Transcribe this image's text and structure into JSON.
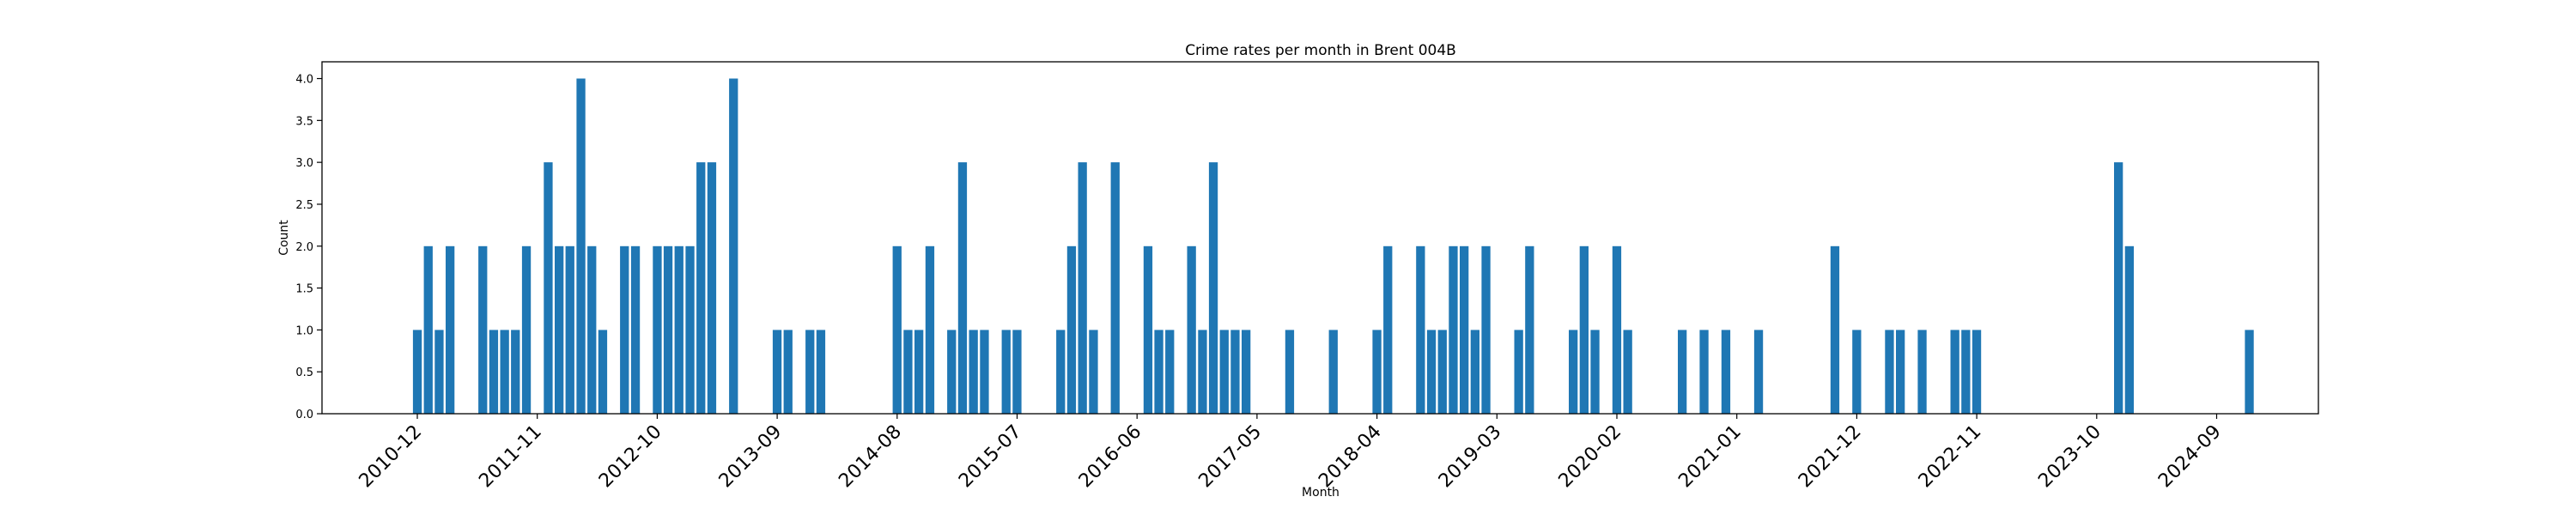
{
  "chart_data": {
    "type": "bar",
    "title": "Crime rates per month in Brent 004B",
    "xlabel": "Month",
    "ylabel": "Count",
    "ylim": [
      0,
      4.2
    ],
    "yticks": [
      "0.0",
      "0.5",
      "1.0",
      "1.5",
      "2.0",
      "2.5",
      "3.0",
      "3.5",
      "4.0"
    ],
    "xticks": [
      "2010-12",
      "2011-11",
      "2012-10",
      "2013-09",
      "2014-08",
      "2015-07",
      "2016-06",
      "2017-05",
      "2018-04",
      "2019-03",
      "2020-02",
      "2021-01",
      "2021-12",
      "2022-11",
      "2023-10",
      "2024-09"
    ],
    "grid": false,
    "legend": "none",
    "bar_color": "#1f77b4",
    "months": [
      "2010-12",
      "2011-01",
      "2011-02",
      "2011-03",
      "2011-06",
      "2011-07",
      "2011-08",
      "2011-09",
      "2011-10",
      "2011-12",
      "2012-01",
      "2012-02",
      "2012-03",
      "2012-04",
      "2012-05",
      "2012-07",
      "2012-08",
      "2012-10",
      "2012-11",
      "2012-12",
      "2013-01",
      "2013-02",
      "2013-03",
      "2013-05",
      "2013-09",
      "2013-10",
      "2013-12",
      "2014-01",
      "2014-08",
      "2014-09",
      "2014-10",
      "2014-11",
      "2015-01",
      "2015-02",
      "2015-03",
      "2015-04",
      "2015-06",
      "2015-07",
      "2015-11",
      "2015-12",
      "2016-01",
      "2016-02",
      "2016-04",
      "2016-07",
      "2016-08",
      "2016-09",
      "2016-11",
      "2016-12",
      "2017-01",
      "2017-02",
      "2017-03",
      "2017-04",
      "2017-08",
      "2017-12",
      "2018-04",
      "2018-05",
      "2018-08",
      "2018-09",
      "2018-10",
      "2018-11",
      "2018-12",
      "2019-01",
      "2019-02",
      "2019-05",
      "2019-06",
      "2019-10",
      "2019-11",
      "2019-12",
      "2020-02",
      "2020-03",
      "2020-08",
      "2020-10",
      "2020-12",
      "2021-03",
      "2021-10",
      "2021-12",
      "2022-03",
      "2022-04",
      "2022-06",
      "2022-09",
      "2022-10",
      "2022-11",
      "2023-12",
      "2024-01",
      "2024-12"
    ],
    "values": [
      1,
      2,
      1,
      2,
      2,
      1,
      1,
      1,
      2,
      3,
      2,
      2,
      4,
      2,
      1,
      2,
      2,
      2,
      2,
      2,
      2,
      3,
      3,
      4,
      1,
      1,
      1,
      1,
      2,
      1,
      1,
      2,
      1,
      3,
      1,
      1,
      1,
      1,
      1,
      2,
      3,
      1,
      3,
      2,
      1,
      1,
      2,
      1,
      3,
      1,
      1,
      1,
      1,
      1,
      1,
      2,
      2,
      1,
      1,
      2,
      2,
      1,
      2,
      1,
      2,
      1,
      2,
      1,
      2,
      1,
      1,
      1,
      1,
      1,
      2,
      1,
      1,
      1,
      1,
      1,
      1,
      1,
      3,
      2,
      1
    ]
  }
}
